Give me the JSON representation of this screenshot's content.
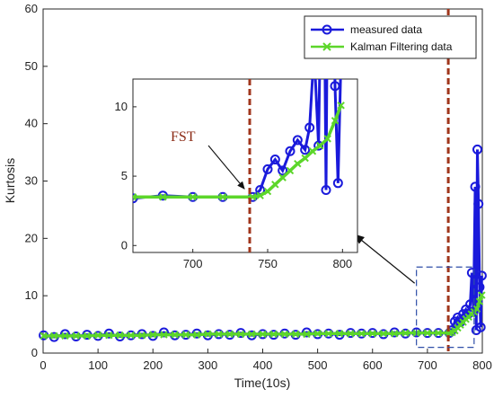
{
  "chart_data": {
    "type": "line",
    "xlabel": "Time(10s)",
    "ylabel": "Kurtosis",
    "xlim": [
      0,
      800
    ],
    "ylim": [
      0,
      60
    ],
    "xticks": [
      0,
      100,
      200,
      300,
      400,
      500,
      600,
      700,
      800
    ],
    "yticks": [
      0,
      10,
      20,
      30,
      40,
      50,
      60
    ],
    "grid": false,
    "legend_position": "top-right",
    "colors": {
      "measured": "#1a1adb",
      "kalman": "#5cd62a",
      "marker_line": "#a0361c",
      "inset_box": "#2f4fa8"
    },
    "series": [
      {
        "name": "measured data",
        "marker": "circle",
        "x": [
          1,
          20,
          40,
          60,
          80,
          100,
          120,
          140,
          160,
          180,
          200,
          220,
          240,
          260,
          280,
          300,
          320,
          340,
          360,
          380,
          400,
          420,
          440,
          460,
          480,
          500,
          520,
          540,
          560,
          580,
          600,
          620,
          640,
          660,
          680,
          700,
          720,
          740,
          745,
          750,
          755,
          760,
          765,
          770,
          775,
          778,
          781,
          784,
          787,
          789,
          791,
          793,
          795,
          797,
          799
        ],
        "y": [
          3.1,
          2.8,
          3.3,
          2.9,
          3.2,
          3.0,
          3.4,
          2.9,
          3.1,
          3.3,
          3.0,
          3.6,
          3.1,
          3.2,
          3.4,
          3.1,
          3.3,
          3.2,
          3.5,
          3.1,
          3.3,
          3.2,
          3.4,
          3.2,
          3.6,
          3.3,
          3.4,
          3.2,
          3.5,
          3.4,
          3.5,
          3.3,
          3.6,
          3.4,
          3.6,
          3.5,
          3.5,
          3.5,
          4.0,
          5.5,
          6.2,
          5.4,
          6.8,
          7.6,
          6.9,
          8.5,
          14.0,
          7.2,
          29.0,
          4.0,
          35.5,
          26.0,
          11.5,
          4.5,
          13.5
        ]
      },
      {
        "name": "Kalman Filtering data",
        "marker": "x",
        "x": [
          1,
          20,
          40,
          60,
          80,
          100,
          120,
          140,
          160,
          180,
          200,
          220,
          240,
          260,
          280,
          300,
          320,
          340,
          360,
          380,
          400,
          420,
          440,
          460,
          480,
          500,
          520,
          540,
          560,
          580,
          600,
          620,
          640,
          660,
          680,
          700,
          720,
          740,
          745,
          750,
          755,
          760,
          765,
          770,
          775,
          780,
          785,
          790,
          795,
          799
        ],
        "y": [
          3.0,
          3.0,
          3.0,
          3.0,
          3.0,
          3.1,
          3.1,
          3.1,
          3.1,
          3.1,
          3.2,
          3.2,
          3.2,
          3.2,
          3.2,
          3.3,
          3.3,
          3.3,
          3.3,
          3.3,
          3.3,
          3.3,
          3.3,
          3.3,
          3.3,
          3.4,
          3.4,
          3.4,
          3.4,
          3.4,
          3.4,
          3.4,
          3.4,
          3.5,
          3.5,
          3.5,
          3.5,
          3.5,
          3.6,
          3.9,
          4.4,
          4.9,
          5.4,
          5.9,
          6.3,
          6.8,
          7.2,
          7.7,
          9.0,
          10.1
        ]
      }
    ],
    "annotations": [
      {
        "text": "FST",
        "x": 738
      }
    ],
    "inset": {
      "xlim": [
        660,
        810
      ],
      "ylim": [
        -0.5,
        12
      ],
      "xticks": [
        700,
        750,
        800
      ],
      "yticks": [
        0,
        5,
        10
      ],
      "zoom_region": {
        "x": [
          680,
          785
        ],
        "y": [
          1,
          15
        ]
      }
    }
  }
}
